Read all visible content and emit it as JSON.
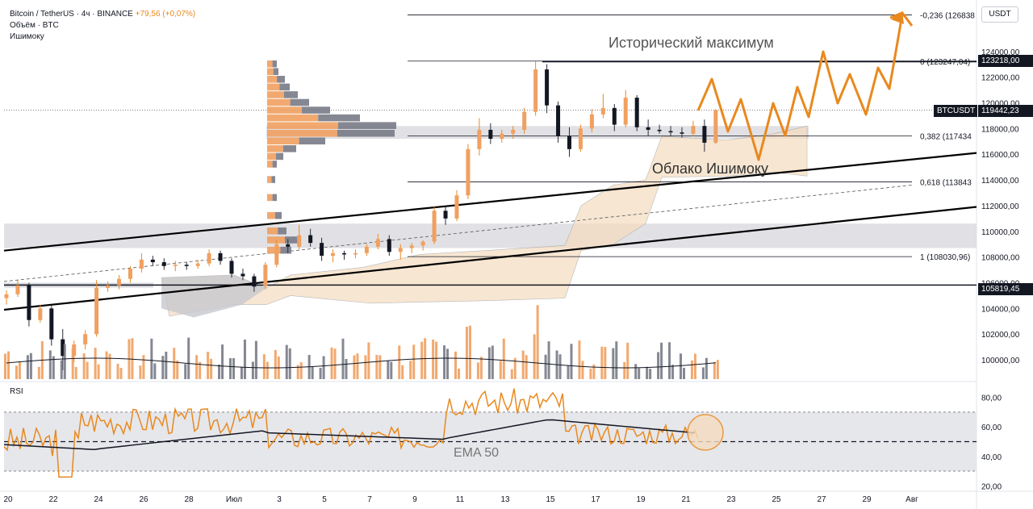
{
  "header": {
    "title": "Bitcoin / TetherUS · 4ч · BINANCE",
    "change": "+79,56 (+0,07%)",
    "volume_label": "Объём · BTC",
    "ichimoku_label": "Ишимоку"
  },
  "rsi_pane": {
    "label": "RSI",
    "ema_label": "EMA 50"
  },
  "price_axis": {
    "currency": "USDT",
    "ticks": [
      "124000,00",
      "122000,00",
      "120000,00",
      "118000,00",
      "116000,00",
      "114000,00",
      "112000,00",
      "110000,00",
      "108000,00",
      "106000,00",
      "104000,00",
      "102000,00",
      "100000,00"
    ],
    "rsi_ticks": [
      "80,00",
      "60,00",
      "40,00",
      "20,00"
    ],
    "current_symbol": "BTCUSDT",
    "current_price": "119442,23",
    "high_price": "123218,00",
    "support_price": "105819,45"
  },
  "time_axis": {
    "labels": [
      "20",
      "22",
      "24",
      "26",
      "28",
      "Июл",
      "3",
      "5",
      "7",
      "9",
      "11",
      "13",
      "15",
      "17",
      "19",
      "21",
      "23",
      "25",
      "27",
      "29",
      "Авг"
    ]
  },
  "annotations": {
    "ath": "Исторический максимум",
    "cloud": "Облако Ишимоку",
    "fib": [
      "-0,236 (126838",
      "0 (123247,04)",
      "0,382 (117434",
      "0,618 (113843",
      "1 (108030,96)"
    ]
  },
  "colors": {
    "bull": "#f0a060",
    "bear": "#787b86",
    "accent": "#e8891f",
    "cloud": "#f5dcc0",
    "text": "#131722"
  },
  "chart_data": {
    "type": "candlestick",
    "x_label_dates": [
      "20",
      "22",
      "24",
      "26",
      "28",
      "Июл",
      "3",
      "5",
      "7",
      "9",
      "11",
      "13",
      "15",
      "17",
      "19",
      "21",
      "23",
      "25",
      "27",
      "29",
      "Авг"
    ],
    "price_range": [
      98500,
      127500
    ],
    "levels": {
      "ath": 123218,
      "current": 119442.23,
      "support": 105819.45,
      "fib_m0236": 126838,
      "fib_0": 123247.04,
      "fib_0382": 117434,
      "fib_0618": 113843,
      "fib_1": 108030.96
    },
    "rsi_range": [
      18,
      88
    ],
    "rsi_levels": [
      70,
      50,
      30
    ],
    "candles": [
      [
        "20",
        104800,
        105400,
        104300,
        105100
      ],
      [
        "20",
        105100,
        106200,
        104900,
        105800
      ],
      [
        "21",
        105800,
        106000,
        102600,
        103100
      ],
      [
        "21",
        103100,
        104300,
        102900,
        104000
      ],
      [
        "22",
        104000,
        104200,
        101100,
        101600
      ],
      [
        "22",
        101600,
        102400,
        99200,
        100300
      ],
      [
        "23",
        100300,
        101500,
        99800,
        101200
      ],
      [
        "23",
        101200,
        102300,
        100800,
        102000
      ],
      [
        "24",
        102000,
        106200,
        101800,
        105600
      ],
      [
        "24",
        105600,
        106100,
        105300,
        105800
      ],
      [
        "25",
        105800,
        106600,
        105500,
        106300
      ],
      [
        "25",
        106300,
        107300,
        106000,
        107100
      ],
      [
        "26",
        107100,
        108300,
        106800,
        107800
      ],
      [
        "26",
        107800,
        108100,
        107300,
        107600
      ],
      [
        "27",
        107600,
        107900,
        107000,
        107300
      ],
      [
        "27",
        107300,
        107700,
        106900,
        107400
      ],
      [
        "28",
        107400,
        107600,
        107000,
        107300
      ],
      [
        "28",
        107300,
        107800,
        107100,
        107500
      ],
      [
        "29",
        107500,
        108600,
        107300,
        108300
      ],
      [
        "29",
        108300,
        108500,
        107400,
        107700
      ],
      [
        "30",
        107700,
        107900,
        106400,
        106700
      ],
      [
        "30",
        106700,
        107100,
        106200,
        106500
      ],
      [
        "Июл",
        106500,
        106700,
        105300,
        105700
      ],
      [
        "Июл",
        105700,
        107600,
        105500,
        107400
      ],
      [
        "2",
        107400,
        109300,
        107200,
        109000
      ],
      [
        "2",
        109000,
        109400,
        108300,
        108800
      ],
      [
        "3",
        108800,
        110500,
        108600,
        109700
      ],
      [
        "3",
        109700,
        110200,
        108800,
        109100
      ],
      [
        "4",
        109100,
        109500,
        107700,
        108100
      ],
      [
        "4",
        108100,
        108600,
        107600,
        108300
      ],
      [
        "5",
        108300,
        108500,
        107800,
        108200
      ],
      [
        "5",
        108200,
        108600,
        107900,
        108300
      ],
      [
        "6",
        108300,
        109000,
        108100,
        108800
      ],
      [
        "6",
        108800,
        109800,
        108600,
        109400
      ],
      [
        "7",
        109400,
        109700,
        108100,
        108400
      ],
      [
        "7",
        108400,
        109000,
        107800,
        108700
      ],
      [
        "8",
        108700,
        109100,
        108300,
        108900
      ],
      [
        "8",
        108900,
        109300,
        108500,
        109200
      ],
      [
        "9",
        109200,
        111900,
        109000,
        111600
      ],
      [
        "9",
        111600,
        111900,
        110500,
        111000
      ],
      [
        "10",
        111000,
        113200,
        110800,
        112800
      ],
      [
        "10",
        112800,
        116800,
        112500,
        116400
      ],
      [
        "11",
        116400,
        118800,
        115900,
        117900
      ],
      [
        "11",
        117900,
        118400,
        116800,
        117200
      ],
      [
        "12",
        117200,
        117900,
        116900,
        117600
      ],
      [
        "12",
        117600,
        118200,
        117200,
        117900
      ],
      [
        "13",
        117900,
        119600,
        117600,
        119300
      ],
      [
        "13",
        119300,
        123218,
        119000,
        122600
      ],
      [
        "14",
        122600,
        123000,
        119200,
        119800
      ],
      [
        "14",
        119800,
        120100,
        116900,
        117400
      ],
      [
        "15",
        117400,
        118100,
        115800,
        116400
      ],
      [
        "15",
        116400,
        118300,
        116200,
        118000
      ],
      [
        "16",
        118000,
        119500,
        117700,
        119100
      ],
      [
        "16",
        119100,
        120700,
        118800,
        119600
      ],
      [
        "17",
        119600,
        119900,
        117800,
        118300
      ],
      [
        "17",
        118300,
        121000,
        118100,
        120400
      ],
      [
        "18",
        120400,
        120600,
        117800,
        118100
      ],
      [
        "18",
        118100,
        118700,
        117400,
        117900
      ],
      [
        "19",
        117900,
        118300,
        117600,
        117800
      ],
      [
        "19",
        117800,
        118200,
        117400,
        117700
      ],
      [
        "20",
        117700,
        118100,
        117300,
        117600
      ],
      [
        "20",
        117600,
        118600,
        117400,
        118200
      ],
      [
        "21",
        118200,
        118700,
        116200,
        116900
      ],
      [
        "21",
        116900,
        119500,
        116800,
        119442
      ]
    ],
    "projection_path": [
      [
        117200,
        0
      ],
      [
        120400,
        1
      ],
      [
        118200,
        2
      ],
      [
        121000,
        3
      ],
      [
        117800,
        4
      ],
      [
        120600,
        5
      ],
      [
        116800,
        6
      ],
      [
        121300,
        7
      ],
      [
        119200,
        8
      ],
      [
        123700,
        9
      ],
      [
        120700,
        10
      ],
      [
        122300,
        11
      ],
      [
        119800,
        12
      ],
      [
        126800,
        13
      ]
    ],
    "trend_channel": {
      "upper": [
        [
          108500,
          0
        ],
        [
          117500,
          1
        ]
      ],
      "lower": [
        [
          103800,
          0
        ],
        [
          111900,
          1
        ]
      ]
    }
  }
}
